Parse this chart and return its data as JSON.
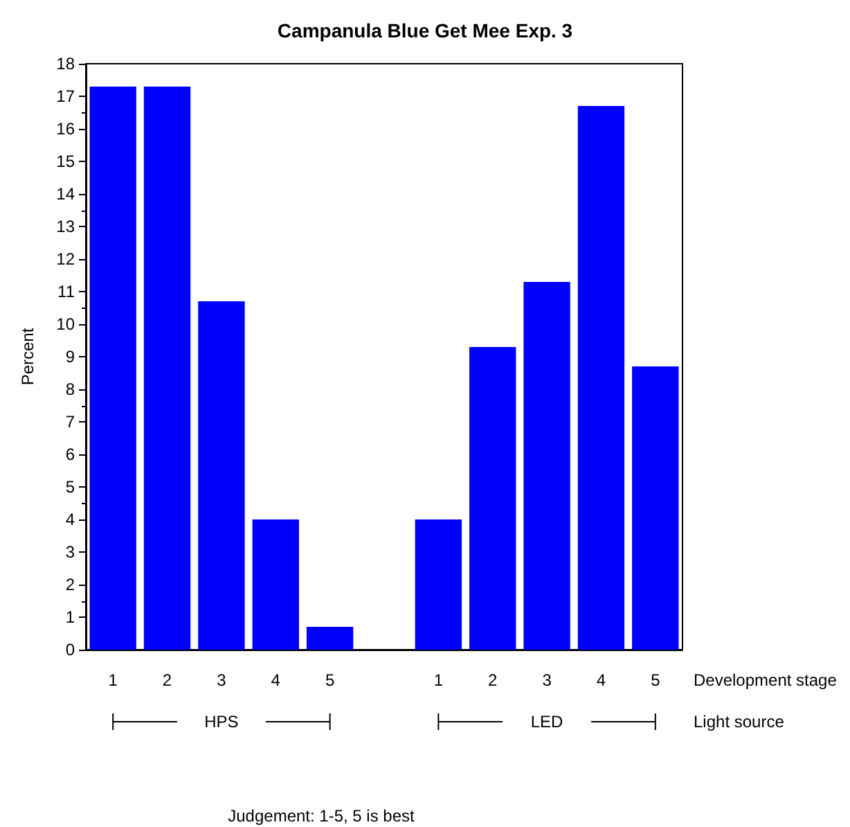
{
  "chart_data": {
    "type": "bar",
    "title": "Campanula Blue Get Mee Exp. 3",
    "categories": [
      "1",
      "2",
      "3",
      "4",
      "5",
      null,
      "1",
      "2",
      "3",
      "4",
      "5"
    ],
    "values": [
      17.3,
      17.3,
      10.7,
      4.0,
      0.7,
      null,
      4.0,
      9.3,
      11.3,
      16.7,
      8.7
    ],
    "color": "#0000ff",
    "xlabel": "Development stage",
    "ylabel": "Percent",
    "ylim": [
      0,
      18
    ],
    "yticks": [
      0,
      1,
      2,
      3,
      4,
      5,
      6,
      7,
      8,
      9,
      10,
      11,
      12,
      13,
      14,
      15,
      16,
      17,
      18
    ],
    "grid": false,
    "annotations": [
      "HPS",
      "LED",
      "Light source",
      "Judgement: 1-5, 5 is best"
    ]
  }
}
